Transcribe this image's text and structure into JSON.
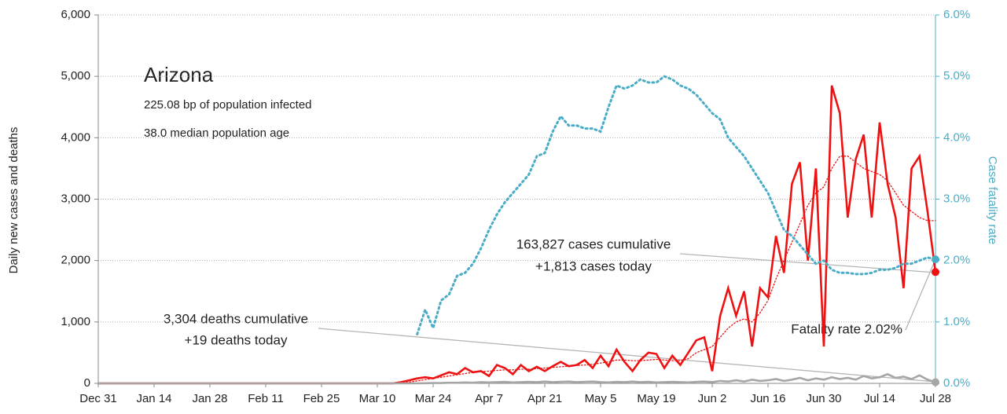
{
  "chart_data": {
    "type": "line",
    "title": "Arizona",
    "subtitle": [
      "225.08 bp of population infected",
      "38.0 median population age"
    ],
    "y_label": "Daily new cases and deaths",
    "y2_label": "Case fatality rate",
    "annotations": [
      "163,827 cases cumulative",
      "+1,813 cases today",
      "3,304 deaths cumulative",
      "+19 deaths today",
      "Fatality rate 2.02%"
    ],
    "categories": [
      "Dec 31",
      null,
      null,
      null,
      null,
      null,
      null,
      "Jan 14",
      null,
      null,
      null,
      null,
      null,
      null,
      "Jan 28",
      null,
      null,
      null,
      null,
      null,
      null,
      "Feb 11",
      null,
      null,
      null,
      null,
      null,
      null,
      "Feb 25",
      null,
      null,
      null,
      null,
      null,
      null,
      "Mar 10",
      null,
      null,
      null,
      null,
      null,
      null,
      "Mar 24",
      null,
      null,
      null,
      null,
      null,
      null,
      "Apr 7",
      null,
      null,
      null,
      null,
      null,
      null,
      "Apr 21",
      null,
      null,
      null,
      null,
      null,
      null,
      "May 5",
      null,
      null,
      null,
      null,
      null,
      null,
      "May 19",
      null,
      null,
      null,
      null,
      null,
      null,
      "Jun 2",
      null,
      null,
      null,
      null,
      null,
      null,
      "Jun 16",
      null,
      null,
      null,
      null,
      null,
      null,
      "Jun 30",
      null,
      null,
      null,
      null,
      null,
      null,
      "Jul 14",
      null,
      null,
      null,
      null,
      null,
      null,
      "Jul 28"
    ],
    "series": [
      {
        "color": "#ee1111",
        "style": "solid",
        "values": [
          0,
          0,
          0,
          0,
          0,
          0,
          0,
          0,
          0,
          0,
          0,
          0,
          0,
          0,
          0,
          0,
          0,
          0,
          0,
          0,
          0,
          0,
          0,
          0,
          0,
          0,
          0,
          0,
          0,
          0,
          0,
          0,
          0,
          0,
          0,
          0,
          0,
          0,
          20,
          50,
          80,
          100,
          80,
          130,
          180,
          150,
          250,
          180,
          200,
          120,
          300,
          250,
          150,
          300,
          200,
          270,
          200,
          280,
          350,
          280,
          300,
          380,
          250,
          450,
          280,
          550,
          350,
          200,
          380,
          500,
          480,
          250,
          450,
          300,
          500,
          700,
          750,
          200,
          1100,
          1550,
          1100,
          1500,
          600,
          1550,
          1400,
          2400,
          1800,
          3250,
          3600,
          2000,
          3500,
          600,
          4850,
          4400,
          2700,
          3650,
          4050,
          2700,
          4250,
          3250,
          2700,
          1550,
          3500,
          3700,
          2800,
          1813
        ]
      },
      {
        "color": "#ee1111",
        "style": "dotted",
        "values": [
          0,
          0,
          0,
          0,
          0,
          0,
          0,
          0,
          0,
          0,
          0,
          0,
          0,
          0,
          0,
          0,
          0,
          0,
          0,
          0,
          0,
          0,
          0,
          0,
          0,
          0,
          0,
          0,
          0,
          0,
          0,
          0,
          0,
          0,
          0,
          0,
          0,
          0,
          5,
          20,
          40,
          60,
          80,
          100,
          120,
          140,
          160,
          180,
          190,
          200,
          210,
          220,
          220,
          230,
          230,
          240,
          250,
          260,
          270,
          280,
          290,
          300,
          310,
          330,
          350,
          380,
          380,
          370,
          370,
          380,
          390,
          380,
          370,
          370,
          400,
          500,
          550,
          600,
          750,
          900,
          1000,
          1050,
          1000,
          1150,
          1350,
          1700,
          2000,
          2300,
          2600,
          2900,
          3100,
          3200,
          3500,
          3700,
          3700,
          3600,
          3500,
          3450,
          3400,
          3300,
          3100,
          2900,
          2800,
          2700,
          2650,
          2650
        ]
      },
      {
        "color": "#a6a6a6",
        "style": "solid",
        "values": [
          0,
          0,
          0,
          0,
          0,
          0,
          0,
          0,
          0,
          0,
          0,
          0,
          0,
          0,
          0,
          0,
          0,
          0,
          0,
          0,
          0,
          0,
          0,
          0,
          0,
          0,
          0,
          0,
          0,
          0,
          0,
          0,
          0,
          0,
          0,
          0,
          0,
          0,
          0,
          0,
          0,
          2,
          5,
          5,
          10,
          10,
          15,
          10,
          20,
          15,
          20,
          25,
          15,
          20,
          25,
          20,
          30,
          20,
          25,
          30,
          20,
          25,
          30,
          20,
          15,
          25,
          20,
          30,
          20,
          25,
          15,
          20,
          25,
          20,
          15,
          25,
          30,
          20,
          40,
          30,
          50,
          30,
          60,
          40,
          50,
          70,
          40,
          60,
          90,
          50,
          80,
          60,
          100,
          70,
          90,
          60,
          120,
          80,
          100,
          150,
          90,
          110,
          70,
          130,
          60,
          19
        ]
      },
      {
        "color": "#4bacc6",
        "style": "dotted",
        "axis": "y2",
        "values": [
          null,
          null,
          null,
          null,
          null,
          null,
          null,
          null,
          null,
          null,
          null,
          null,
          null,
          null,
          null,
          null,
          null,
          null,
          null,
          null,
          null,
          null,
          null,
          null,
          null,
          null,
          null,
          null,
          null,
          null,
          null,
          null,
          null,
          null,
          null,
          null,
          null,
          null,
          null,
          null,
          0.8,
          1.2,
          0.9,
          1.35,
          1.45,
          1.75,
          1.8,
          1.95,
          2.2,
          2.5,
          2.75,
          2.95,
          3.1,
          3.25,
          3.4,
          3.7,
          3.75,
          4.1,
          4.35,
          4.2,
          4.2,
          4.15,
          4.15,
          4.1,
          4.5,
          4.85,
          4.8,
          4.85,
          4.95,
          4.9,
          4.9,
          5.0,
          4.95,
          4.85,
          4.8,
          4.7,
          4.55,
          4.4,
          4.3,
          4.0,
          3.85,
          3.7,
          3.5,
          3.3,
          3.1,
          2.8,
          2.5,
          2.4,
          2.25,
          2.1,
          1.95,
          2.0,
          1.85,
          1.8,
          1.8,
          1.78,
          1.78,
          1.8,
          1.85,
          1.85,
          1.88,
          1.95,
          1.95,
          2.0,
          2.05,
          2.02
        ]
      }
    ],
    "ylim": [
      0,
      6000
    ],
    "yticks": [
      0,
      {
        "value": 1000,
        "label": "1,000"
      },
      {
        "value": 2000,
        "label": "2,000"
      },
      {
        "value": 3000,
        "label": "3,000"
      },
      {
        "value": 4000,
        "label": "4,000"
      },
      {
        "value": 5000,
        "label": "5,000"
      },
      {
        "value": 6000,
        "label": "6,000"
      }
    ],
    "y2lim": [
      0,
      6
    ],
    "y2ticks": [
      {
        "value": 0,
        "label": "0.0%"
      },
      {
        "value": 1,
        "label": "1.0%"
      },
      {
        "value": 2,
        "label": "2.0%"
      },
      {
        "value": 3,
        "label": "3.0%"
      },
      {
        "value": 4,
        "label": "4.0%"
      },
      {
        "value": 5,
        "label": "5.0%"
      },
      {
        "value": 6,
        "label": "6.0%"
      }
    ],
    "grid": true
  }
}
